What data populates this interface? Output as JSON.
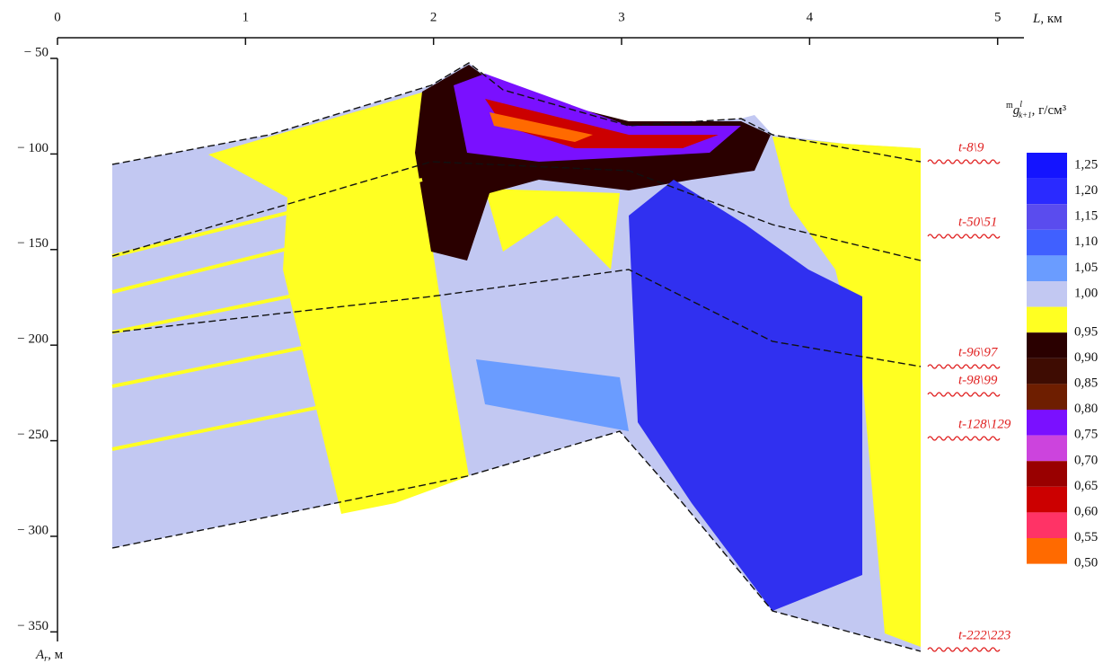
{
  "chart_data": {
    "type": "section",
    "x_label": {
      "symbol": "L",
      "rest": ", км"
    },
    "y_label": {
      "symbol": "A",
      "subscript": "r",
      "rest": ", м"
    },
    "legend_title": {
      "pre": "m",
      "symbol": "g",
      "sup": "l",
      "sub": "k+1",
      "rest": ", г/см³"
    },
    "xlim": [
      0,
      5.14
    ],
    "xticks": [
      0,
      1,
      2,
      3,
      4,
      5
    ],
    "ylim": [
      -50,
      -355
    ],
    "yticks": [
      {
        "value": -50,
        "label": "− 50"
      },
      {
        "value": -100,
        "label": "− 100"
      },
      {
        "value": -150,
        "label": "− 150"
      },
      {
        "value": -200,
        "label": "− 200"
      },
      {
        "value": -250,
        "label": "− 250"
      },
      {
        "value": -300,
        "label": "− 300"
      },
      {
        "value": -350,
        "label": "− 350"
      }
    ],
    "legend": [
      {
        "value": 1.25,
        "label": "1,25",
        "color": "#1414ff"
      },
      {
        "value": 1.2,
        "label": "1,20",
        "color": "#2a2aff"
      },
      {
        "value": 1.15,
        "label": "1,15",
        "color": "#5a4cee"
      },
      {
        "value": 1.1,
        "label": "1,10",
        "color": "#4060ff"
      },
      {
        "value": 1.05,
        "label": "1,05",
        "color": "#6a9cff"
      },
      {
        "value": 1.0,
        "label": "1,00",
        "color": "#c2c8f2"
      },
      {
        "value": 0.95,
        "label": "0,95",
        "color": "#ffff22"
      },
      {
        "value": 0.9,
        "label": "0,90",
        "color": "#2a0000"
      },
      {
        "value": 0.85,
        "label": "0,85",
        "color": "#3e0c02"
      },
      {
        "value": 0.8,
        "label": "0,80",
        "color": "#6e1e00"
      },
      {
        "value": 0.75,
        "label": "0,75",
        "color": "#7a10ff"
      },
      {
        "value": 0.7,
        "label": "0,70",
        "color": "#cc44dd"
      },
      {
        "value": 0.65,
        "label": "0,65",
        "color": "#990000"
      },
      {
        "value": 0.6,
        "label": "0,60",
        "color": "#cc0000"
      },
      {
        "value": 0.55,
        "label": "0,55",
        "color": "#ff3366"
      },
      {
        "value": 0.5,
        "label": "0,50",
        "color": "#ff6a00"
      }
    ],
    "horizons": [
      "t-8\\9",
      "t-50\\51",
      "t-96\\97",
      "t-98\\99",
      "t-128\\129",
      "t-222\\223"
    ]
  }
}
